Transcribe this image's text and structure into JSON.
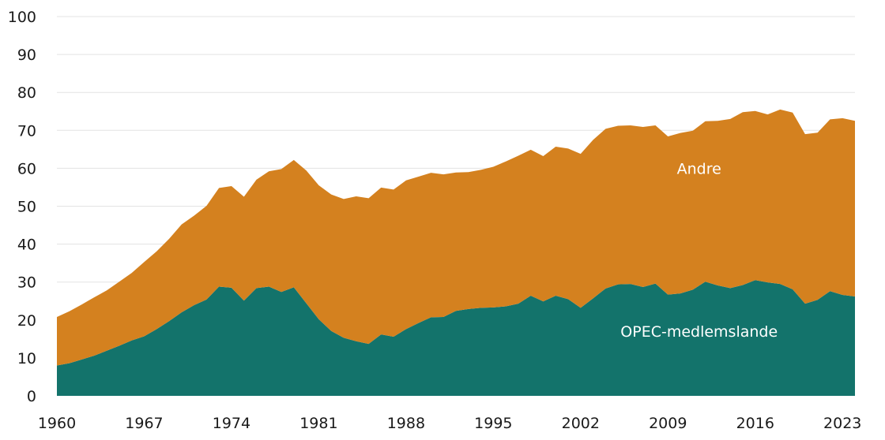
{
  "chart_data": {
    "type": "area",
    "stacked": true,
    "grid": true,
    "ylim": [
      0,
      100
    ],
    "yticks": [
      0,
      10,
      20,
      30,
      40,
      50,
      60,
      70,
      80,
      90,
      100
    ],
    "xlim": [
      1960,
      2024
    ],
    "xticks": [
      1960,
      1967,
      1974,
      1981,
      1988,
      1995,
      2002,
      2009,
      2016,
      2023
    ],
    "x": [
      1960,
      1961,
      1962,
      1963,
      1964,
      1965,
      1966,
      1967,
      1968,
      1969,
      1970,
      1971,
      1972,
      1973,
      1974,
      1975,
      1976,
      1977,
      1978,
      1979,
      1980,
      1981,
      1982,
      1983,
      1984,
      1985,
      1986,
      1987,
      1988,
      1989,
      1990,
      1991,
      1992,
      1993,
      1994,
      1995,
      1996,
      1997,
      1998,
      1999,
      2000,
      2001,
      2002,
      2003,
      2004,
      2005,
      2006,
      2007,
      2008,
      2009,
      2010,
      2011,
      2012,
      2013,
      2014,
      2015,
      2016,
      2017,
      2018,
      2019,
      2020,
      2021,
      2022,
      2023,
      2024
    ],
    "series": [
      {
        "name": "OPEC-medlemslande",
        "color": "#13736b",
        "values": [
          8.0,
          8.6,
          9.6,
          10.6,
          11.9,
          13.2,
          14.6,
          15.7,
          17.6,
          19.7,
          22.0,
          23.9,
          25.4,
          28.8,
          28.5,
          25.1,
          28.4,
          28.8,
          27.4,
          28.6,
          24.4,
          20.2,
          17.1,
          15.3,
          14.4,
          13.7,
          16.2,
          15.6,
          17.6,
          19.2,
          20.7,
          20.8,
          22.4,
          22.9,
          23.2,
          23.3,
          23.6,
          24.3,
          26.4,
          24.9,
          26.4,
          25.5,
          23.2,
          25.7,
          28.3,
          29.4,
          29.5,
          28.7,
          29.6,
          26.7,
          27.0,
          28.0,
          30.1,
          29.1,
          28.4,
          29.2,
          30.5,
          29.9,
          29.5,
          28.1,
          24.3,
          25.3,
          27.6,
          26.6,
          26.2
        ]
      },
      {
        "name": "Andre",
        "color": "#d4811f",
        "values": [
          12.8,
          13.7,
          14.5,
          15.4,
          15.9,
          16.9,
          17.8,
          19.6,
          20.5,
          21.7,
          23.2,
          23.6,
          24.7,
          26.0,
          26.8,
          27.4,
          28.6,
          30.4,
          32.4,
          33.6,
          35.0,
          35.3,
          36.0,
          36.6,
          38.2,
          38.4,
          38.7,
          38.8,
          39.2,
          38.6,
          38.1,
          37.6,
          36.5,
          36.1,
          36.4,
          37.1,
          38.2,
          39.0,
          38.5,
          38.3,
          39.3,
          39.7,
          40.6,
          41.8,
          42.1,
          41.8,
          41.8,
          42.2,
          41.7,
          41.7,
          42.3,
          41.9,
          42.3,
          43.4,
          44.6,
          45.6,
          44.6,
          44.3,
          46.0,
          46.6,
          44.7,
          44.1,
          45.3,
          46.6,
          46.3
        ]
      }
    ],
    "labels": [
      {
        "text": "Andre",
        "x": 2011.5,
        "y": 60
      },
      {
        "text": "OPEC-medlemslande",
        "x": 2011.5,
        "y": 17
      }
    ]
  }
}
